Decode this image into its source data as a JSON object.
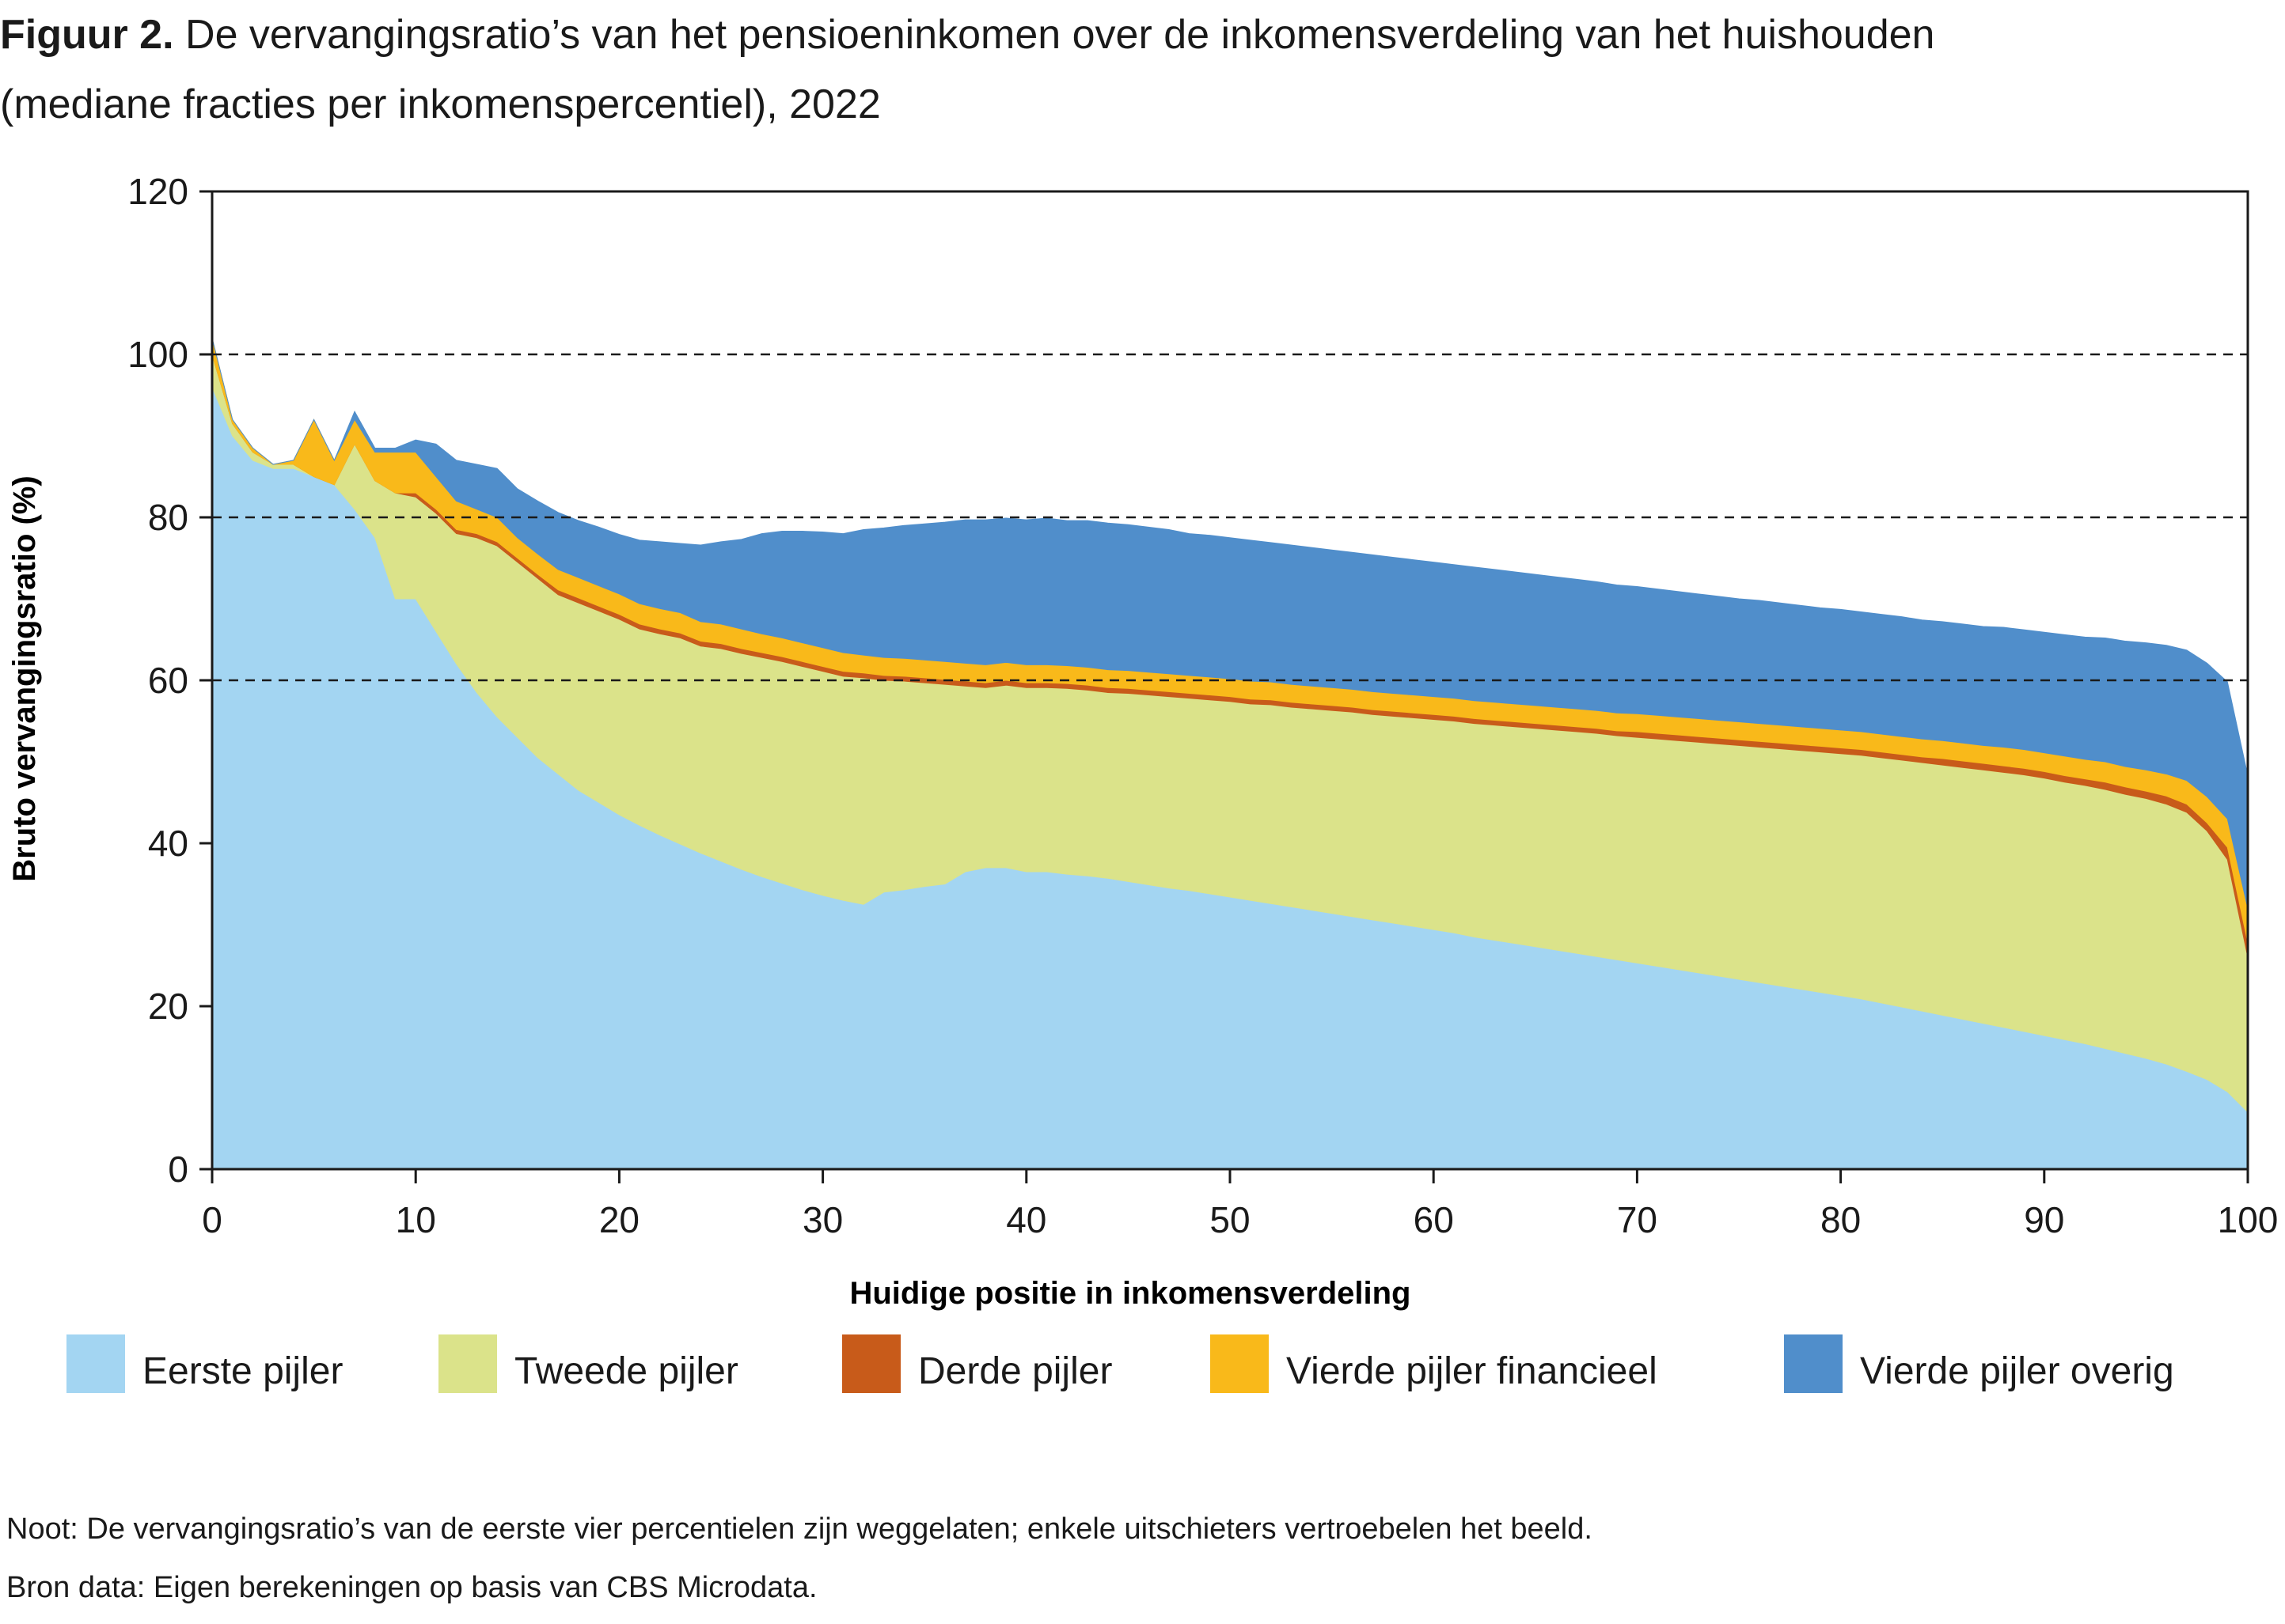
{
  "figure": {
    "label": "Figuur 2.",
    "title_line1": " De vervangingsratio’s van het pensioeninkomen over de inkomensverdeling van het huishouden",
    "title_line2": "(mediane fracties per inkomenspercentiel), 2022"
  },
  "notes": {
    "noot": "Noot: De vervangingsratio’s van de eerste vier percentielen zijn weggelaten; enkele uitschieters vertroebelen het beeld.",
    "bron": "Bron data: Eigen berekeningen op basis van CBS Microdata."
  },
  "colors": {
    "eerste": "#a3d5f2",
    "tweede": "#dbe38a",
    "derde": "#c85b1a",
    "vierde_fin": "#f9b91a",
    "vierde_overig": "#508ecb",
    "axis": "#1a1a1a",
    "gridline": "#1a1a1a"
  },
  "chart_data": {
    "type": "area",
    "stacked": true,
    "title": "De vervangingsratio’s van het pensioeninkomen over de inkomensverdeling van het huishouden (mediane fracties per inkomenspercentiel), 2022",
    "xlabel": "Huidige positie in inkomensverdeling",
    "ylabel": "Bruto vervangingsratio (%)",
    "xlim": [
      0,
      100
    ],
    "ylim": [
      0,
      120
    ],
    "xticks": [
      0,
      10,
      20,
      30,
      40,
      50,
      60,
      70,
      80,
      90,
      100
    ],
    "yticks": [
      0,
      20,
      40,
      60,
      80,
      100,
      120
    ],
    "dashed_gridlines_y": [
      60,
      80,
      100
    ],
    "legend_position": "bottom",
    "x": [
      0,
      1,
      2,
      3,
      4,
      5,
      6,
      7,
      8,
      9,
      10,
      11,
      12,
      13,
      14,
      15,
      16,
      17,
      18,
      19,
      20,
      21,
      22,
      23,
      24,
      25,
      26,
      27,
      28,
      29,
      30,
      31,
      32,
      33,
      34,
      35,
      36,
      37,
      38,
      39,
      40,
      41,
      42,
      43,
      44,
      45,
      46,
      47,
      48,
      49,
      50,
      51,
      52,
      53,
      54,
      55,
      56,
      57,
      58,
      59,
      60,
      61,
      62,
      63,
      64,
      65,
      66,
      67,
      68,
      69,
      70,
      71,
      72,
      73,
      74,
      75,
      76,
      77,
      78,
      79,
      80,
      81,
      82,
      83,
      84,
      85,
      86,
      87,
      88,
      89,
      90,
      91,
      92,
      93,
      94,
      95,
      96,
      97,
      98,
      99,
      100
    ],
    "series": [
      {
        "name": "Eerste pijler",
        "color_key": "eerste",
        "values": [
          96,
          90,
          87,
          86,
          86,
          85,
          84,
          81,
          77.5,
          70,
          70,
          66,
          62,
          58.5,
          55.5,
          53,
          50.5,
          48.5,
          46.5,
          45,
          43.5,
          42.2,
          41,
          39.9,
          38.8,
          37.8,
          36.8,
          35.9,
          35.1,
          34.3,
          33.6,
          33,
          32.5,
          34,
          34.3,
          34.7,
          35,
          36.5,
          37,
          37,
          36.5,
          36.5,
          36.2,
          36,
          35.7,
          35.3,
          34.9,
          34.5,
          34.2,
          33.8,
          33.4,
          33,
          32.6,
          32.2,
          31.8,
          31.4,
          31,
          30.6,
          30.2,
          29.8,
          29.4,
          29,
          28.5,
          28.1,
          27.7,
          27.3,
          26.9,
          26.5,
          26.1,
          25.7,
          25.3,
          24.9,
          24.5,
          24.1,
          23.7,
          23.3,
          22.9,
          22.5,
          22.1,
          21.7,
          21.3,
          20.9,
          20.4,
          19.9,
          19.4,
          18.9,
          18.4,
          17.9,
          17.4,
          16.9,
          16.4,
          15.9,
          15.4,
          14.8,
          14.2,
          13.6,
          12.9,
          12,
          11,
          9.5,
          7
        ]
      },
      {
        "name": "Tweede pijler",
        "color_key": "tweede",
        "values": [
          4,
          1.5,
          1,
          0.5,
          0.5,
          0,
          0,
          8,
          7,
          13,
          12.5,
          14.5,
          16,
          19,
          21,
          21.5,
          22,
          22,
          23,
          23.5,
          24,
          24.1,
          24.7,
          25.3,
          25.4,
          26.1,
          26.5,
          26.9,
          27.2,
          27.4,
          27.5,
          27.5,
          27.8,
          26,
          25.6,
          25,
          24.5,
          22.8,
          22.1,
          22.4,
          22.6,
          22.6,
          22.8,
          22.8,
          22.8,
          23.1,
          23.3,
          23.5,
          23.6,
          23.8,
          24,
          24.1,
          24.4,
          24.5,
          24.7,
          24.9,
          25.1,
          25.2,
          25.4,
          25.6,
          25.8,
          26,
          26.2,
          26.4,
          26.6,
          26.8,
          27,
          27.2,
          27.4,
          27.5,
          27.7,
          27.9,
          28.1,
          28.3,
          28.5,
          28.7,
          28.9,
          29.1,
          29.3,
          29.5,
          29.7,
          29.9,
          30.1,
          30.3,
          30.5,
          30.7,
          30.9,
          31.1,
          31.3,
          31.5,
          31.6,
          31.6,
          31.7,
          31.8,
          31.8,
          31.9,
          31.9,
          31.8,
          30.5,
          28.5,
          19
        ]
      },
      {
        "name": "Derde pijler",
        "color_key": "derde",
        "values": [
          0,
          0,
          0,
          0,
          0,
          0,
          0,
          0,
          0,
          0,
          0.5,
          0.5,
          0.5,
          0.5,
          0.5,
          0.5,
          0.5,
          0.6,
          0.6,
          0.6,
          0.6,
          0.6,
          0.6,
          0.6,
          0.6,
          0.6,
          0.6,
          0.6,
          0.6,
          0.6,
          0.6,
          0.6,
          0.6,
          0.6,
          0.6,
          0.6,
          0.6,
          0.6,
          0.6,
          0.6,
          0.6,
          0.6,
          0.6,
          0.6,
          0.6,
          0.6,
          0.6,
          0.6,
          0.6,
          0.6,
          0.6,
          0.6,
          0.6,
          0.6,
          0.6,
          0.6,
          0.6,
          0.6,
          0.6,
          0.6,
          0.6,
          0.6,
          0.6,
          0.6,
          0.6,
          0.6,
          0.6,
          0.6,
          0.6,
          0.6,
          0.7,
          0.7,
          0.7,
          0.7,
          0.7,
          0.7,
          0.7,
          0.7,
          0.7,
          0.7,
          0.7,
          0.7,
          0.7,
          0.7,
          0.7,
          0.8,
          0.8,
          0.8,
          0.8,
          0.8,
          0.8,
          0.8,
          0.8,
          0.9,
          0.9,
          0.9,
          1,
          1,
          1,
          1.5,
          1.8
        ]
      },
      {
        "name": "Vierde pijler financieel",
        "color_key": "vierde_fin",
        "values": [
          2,
          0.5,
          0.5,
          0,
          0.5,
          7,
          3,
          3,
          3.5,
          5,
          5,
          4,
          3.5,
          3,
          3,
          2.5,
          2.5,
          2.5,
          2.5,
          2.5,
          2.5,
          2.5,
          2.5,
          2.5,
          2.4,
          2.4,
          2.4,
          2.3,
          2.3,
          2.3,
          2.3,
          2.3,
          2.2,
          2.2,
          2.2,
          2.2,
          2.2,
          2.2,
          2.2,
          2.2,
          2.2,
          2.2,
          2.2,
          2.2,
          2.2,
          2.2,
          2.2,
          2.2,
          2.2,
          2.2,
          2.2,
          2.2,
          2.2,
          2.2,
          2.2,
          2.2,
          2.2,
          2.2,
          2.2,
          2.2,
          2.2,
          2.2,
          2.2,
          2.2,
          2.2,
          2.2,
          2.2,
          2.2,
          2.2,
          2.2,
          2.2,
          2.2,
          2.2,
          2.2,
          2.2,
          2.2,
          2.2,
          2.2,
          2.2,
          2.2,
          2.2,
          2.2,
          2.2,
          2.2,
          2.2,
          2.2,
          2.2,
          2.2,
          2.3,
          2.3,
          2.3,
          2.4,
          2.4,
          2.5,
          2.5,
          2.6,
          2.7,
          2.9,
          3.2,
          3.5,
          4.2
        ]
      },
      {
        "name": "Vierde pijler overig",
        "color_key": "vierde_overig",
        "values": [
          0,
          0,
          0,
          0,
          0,
          0,
          0,
          1,
          0.5,
          0.5,
          1.5,
          4,
          5,
          5.5,
          6,
          6,
          6.5,
          7,
          7,
          7.2,
          7.3,
          7.8,
          8.2,
          8.5,
          9.4,
          10.1,
          11,
          12.3,
          13.1,
          13.7,
          14.2,
          14.6,
          15.4,
          15.9,
          16.3,
          16.7,
          17.1,
          17.6,
          17.8,
          17.7,
          17.8,
          18,
          17.8,
          18,
          18,
          17.9,
          17.8,
          17.7,
          17.4,
          17.4,
          17.3,
          17.3,
          17.1,
          17.1,
          17,
          16.9,
          16.8,
          16.8,
          16.7,
          16.6,
          16.5,
          16.4,
          16.4,
          16.3,
          16.2,
          16.1,
          16,
          15.9,
          15.8,
          15.7,
          15.6,
          15.5,
          15.4,
          15.3,
          15.2,
          15.1,
          15.1,
          15,
          14.9,
          14.8,
          14.8,
          14.7,
          14.7,
          14.7,
          14.6,
          14.6,
          14.6,
          14.6,
          14.7,
          14.7,
          14.8,
          14.9,
          15,
          15.2,
          15.4,
          15.6,
          15.8,
          16,
          16.4,
          16.8,
          16.3
        ]
      }
    ]
  }
}
